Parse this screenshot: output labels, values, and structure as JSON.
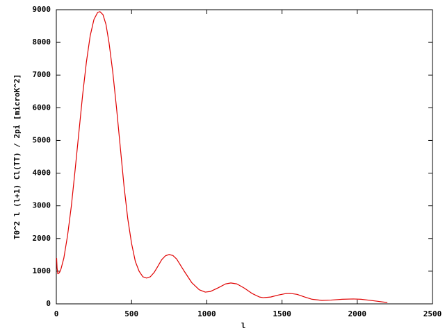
{
  "chart_data": {
    "type": "line",
    "xlabel": "l",
    "ylabel": "T0^2 l (l+1) Cl(TT) / 2pi [microK^2]",
    "x": [
      2,
      5,
      10,
      20,
      30,
      50,
      75,
      100,
      125,
      150,
      175,
      200,
      225,
      250,
      275,
      290,
      310,
      330,
      350,
      375,
      400,
      425,
      450,
      475,
      500,
      525,
      550,
      575,
      600,
      625,
      650,
      675,
      700,
      725,
      750,
      775,
      800,
      850,
      900,
      950,
      990,
      1025,
      1075,
      1125,
      1160,
      1200,
      1250,
      1300,
      1350,
      1375,
      1425,
      1475,
      1525,
      1555,
      1600,
      1650,
      1700,
      1765,
      1825,
      1900,
      1973,
      2025,
      2100,
      2150,
      2200
    ],
    "series": [
      {
        "color": "#e00000",
        "values": [
          1400,
          1100,
          920,
          950,
          1050,
          1400,
          2100,
          3000,
          4100,
          5250,
          6400,
          7400,
          8200,
          8700,
          8920,
          8940,
          8850,
          8550,
          8000,
          7100,
          6000,
          4800,
          3600,
          2600,
          1850,
          1300,
          1000,
          830,
          790,
          830,
          960,
          1150,
          1350,
          1470,
          1510,
          1480,
          1370,
          1000,
          650,
          430,
          360,
          380,
          490,
          610,
          640,
          610,
          480,
          320,
          210,
          190,
          210,
          270,
          315,
          320,
          290,
          210,
          140,
          106,
          115,
          140,
          150,
          140,
          100,
          70,
          40
        ]
      }
    ],
    "xlim": [
      0,
      2500
    ],
    "xticks": [
      0,
      500,
      1000,
      1500,
      2000,
      2500
    ],
    "ylim": [
      0,
      9000
    ],
    "yticks": [
      0,
      1000,
      2000,
      3000,
      4000,
      5000,
      6000,
      7000,
      8000,
      9000
    ]
  }
}
